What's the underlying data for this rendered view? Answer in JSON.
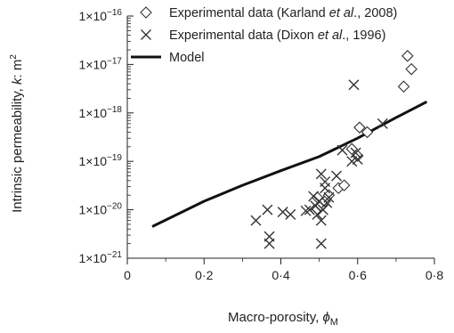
{
  "chart_data": {
    "type": "scatter",
    "xlabel": "Macro-porosity, ϕM",
    "xlabel_text": "Macro-porosity, ",
    "xlabel_symbol": "ϕ",
    "xlabel_sub": "M",
    "ylabel": "Intrinsic permeability, k: m2",
    "ylabel_text": "Intrinsic permeability, ",
    "ylabel_italic": "k",
    "ylabel_unit": ": m",
    "ylabel_sup": "2",
    "xlim": [
      0,
      0.8
    ],
    "ylim": [
      1e-21,
      1e-16
    ],
    "yscale": "log",
    "grid": false,
    "legend_position": "top-left",
    "x_ticks": [
      {
        "value": 0,
        "label": "0"
      },
      {
        "value": 0.2,
        "label": "0·2"
      },
      {
        "value": 0.4,
        "label": "0·4"
      },
      {
        "value": 0.6,
        "label": "0·6"
      },
      {
        "value": 0.8,
        "label": "0·8"
      }
    ],
    "y_ticks": [
      {
        "exp": -16,
        "mantissa": "1",
        "sep": "×10",
        "sup": "−16"
      },
      {
        "exp": -17,
        "mantissa": "1",
        "sep": "×10",
        "sup": "−17"
      },
      {
        "exp": -18,
        "mantissa": "1",
        "sep": "×10",
        "sup": "−18"
      },
      {
        "exp": -19,
        "mantissa": "1",
        "sep": "×10",
        "sup": "−19"
      },
      {
        "exp": -20,
        "mantissa": "1",
        "sep": "×10",
        "sup": "−20"
      },
      {
        "exp": -21,
        "mantissa": "1",
        "sep": "×10",
        "sup": "−21"
      }
    ],
    "series": [
      {
        "name": "Experimental data (Karland et al., 2008)",
        "legend_parts": [
          "Experimental data (Karland ",
          "et al",
          "., 2008)"
        ],
        "marker": "diamond",
        "points": [
          {
            "x": 0.495,
            "y": 1.8e-20
          },
          {
            "x": 0.505,
            "y": 1.2e-20
          },
          {
            "x": 0.515,
            "y": 1.5e-20
          },
          {
            "x": 0.525,
            "y": 2e-20
          },
          {
            "x": 0.55,
            "y": 2.8e-20
          },
          {
            "x": 0.565,
            "y": 3.2e-20
          },
          {
            "x": 0.585,
            "y": 1.8e-19
          },
          {
            "x": 0.6,
            "y": 1.3e-19
          },
          {
            "x": 0.605,
            "y": 5e-19
          },
          {
            "x": 0.625,
            "y": 4e-19
          },
          {
            "x": 0.72,
            "y": 3.5e-18
          },
          {
            "x": 0.73,
            "y": 1.5e-17
          },
          {
            "x": 0.74,
            "y": 8e-18
          }
        ]
      },
      {
        "name": "Experimental data (Dixon et al., 1996)",
        "legend_parts": [
          "Experimental data (Dixon ",
          "et al",
          "., 1996)"
        ],
        "marker": "cross",
        "points": [
          {
            "x": 0.335,
            "y": 6e-21
          },
          {
            "x": 0.365,
            "y": 1e-20
          },
          {
            "x": 0.37,
            "y": 2e-21
          },
          {
            "x": 0.37,
            "y": 2.8e-21
          },
          {
            "x": 0.405,
            "y": 9e-21
          },
          {
            "x": 0.425,
            "y": 8e-21
          },
          {
            "x": 0.465,
            "y": 9.5e-21
          },
          {
            "x": 0.475,
            "y": 1e-20
          },
          {
            "x": 0.485,
            "y": 1.9e-20
          },
          {
            "x": 0.49,
            "y": 1.2e-20
          },
          {
            "x": 0.495,
            "y": 8e-21
          },
          {
            "x": 0.5,
            "y": 1.5e-20
          },
          {
            "x": 0.505,
            "y": 6e-21
          },
          {
            "x": 0.505,
            "y": 2e-21
          },
          {
            "x": 0.505,
            "y": 5.5e-20
          },
          {
            "x": 0.51,
            "y": 1e-20
          },
          {
            "x": 0.515,
            "y": 2.8e-20
          },
          {
            "x": 0.515,
            "y": 3.8e-20
          },
          {
            "x": 0.52,
            "y": 1.4e-20
          },
          {
            "x": 0.525,
            "y": 1.8e-20
          },
          {
            "x": 0.545,
            "y": 5e-20
          },
          {
            "x": 0.56,
            "y": 1.7e-19
          },
          {
            "x": 0.585,
            "y": 1e-19
          },
          {
            "x": 0.59,
            "y": 3.8e-18
          },
          {
            "x": 0.595,
            "y": 1.5e-19
          },
          {
            "x": 0.6,
            "y": 1.1e-19
          },
          {
            "x": 0.665,
            "y": 6e-19
          }
        ]
      },
      {
        "name": "Model",
        "marker": "line",
        "points": [
          {
            "x": 0.065,
            "y": 4.5e-21
          },
          {
            "x": 0.2,
            "y": 1.5e-20
          },
          {
            "x": 0.3,
            "y": 3.2e-20
          },
          {
            "x": 0.4,
            "y": 6.4e-20
          },
          {
            "x": 0.5,
            "y": 1.25e-19
          },
          {
            "x": 0.6,
            "y": 3e-19
          },
          {
            "x": 0.7,
            "y": 8e-19
          },
          {
            "x": 0.78,
            "y": 1.7e-18
          }
        ]
      }
    ]
  }
}
